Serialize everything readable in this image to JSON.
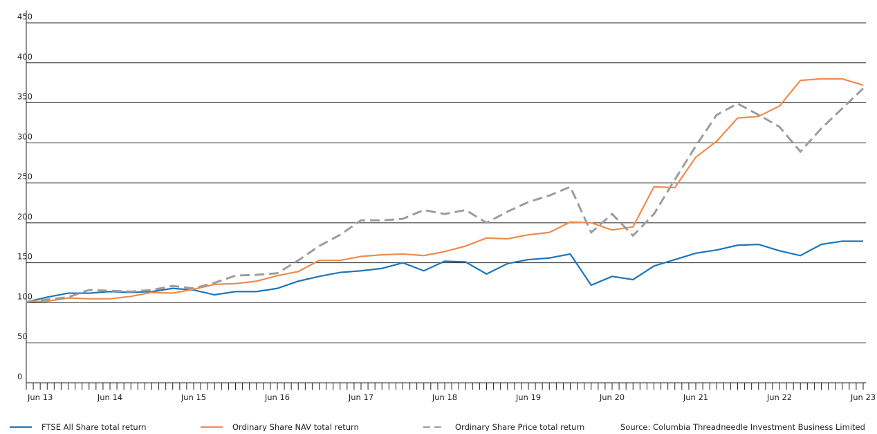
{
  "chart_data": {
    "type": "line",
    "categories": [
      "Jun 13",
      null,
      null,
      null,
      "Jun 14",
      null,
      null,
      null,
      "Jun 15",
      null,
      null,
      null,
      "Jun 16",
      null,
      null,
      null,
      "Jun 17",
      null,
      null,
      null,
      "Jun 18",
      null,
      null,
      null,
      "Jun 19",
      null,
      null,
      null,
      "Jun 20",
      null,
      null,
      null,
      "Jun 21",
      null,
      null,
      null,
      "Jun 22",
      null,
      null,
      null,
      "Jun 23"
    ],
    "series": [
      {
        "name": "FTSE All Share total return",
        "color": "#1b75bb",
        "dash": false,
        "values": [
          101,
          107,
          112,
          112,
          114,
          113,
          114,
          118,
          116,
          110,
          114,
          114,
          118,
          127,
          133,
          138,
          140,
          143,
          150,
          140,
          152,
          151,
          136,
          149,
          154,
          156,
          161,
          122,
          133,
          129,
          146,
          154,
          162,
          166,
          172,
          173,
          165,
          159,
          173,
          177,
          177
        ]
      },
      {
        "name": "Ordinary Share NAV total return",
        "color": "#f08a4b",
        "dash": false,
        "values": [
          101,
          102,
          106,
          105,
          105,
          108,
          113,
          112,
          117,
          123,
          124,
          127,
          134,
          139,
          153,
          153,
          158,
          160,
          161,
          159,
          164,
          171,
          181,
          180,
          185,
          188,
          201,
          200,
          191,
          195,
          245,
          244,
          282,
          302,
          331,
          333,
          346,
          378,
          380,
          380,
          372
        ]
      },
      {
        "name": "Ordinary Share Price total return",
        "color": "#9d9d9d",
        "dash": true,
        "values": [
          101,
          104,
          107,
          116,
          115,
          114,
          116,
          121,
          118,
          125,
          134,
          135,
          137,
          153,
          171,
          185,
          203,
          203,
          205,
          216,
          211,
          216,
          200,
          214,
          226,
          234,
          245,
          188,
          211,
          184,
          211,
          254,
          296,
          335,
          349,
          335,
          320,
          289,
          318,
          343,
          368
        ]
      }
    ],
    "ylim": [
      0,
      450
    ],
    "yticks": [
      0,
      50,
      100,
      150,
      200,
      250,
      300,
      350,
      400,
      450
    ],
    "grid": true,
    "source": "Source: Columbia Threadneedle Investment Business Limited"
  }
}
